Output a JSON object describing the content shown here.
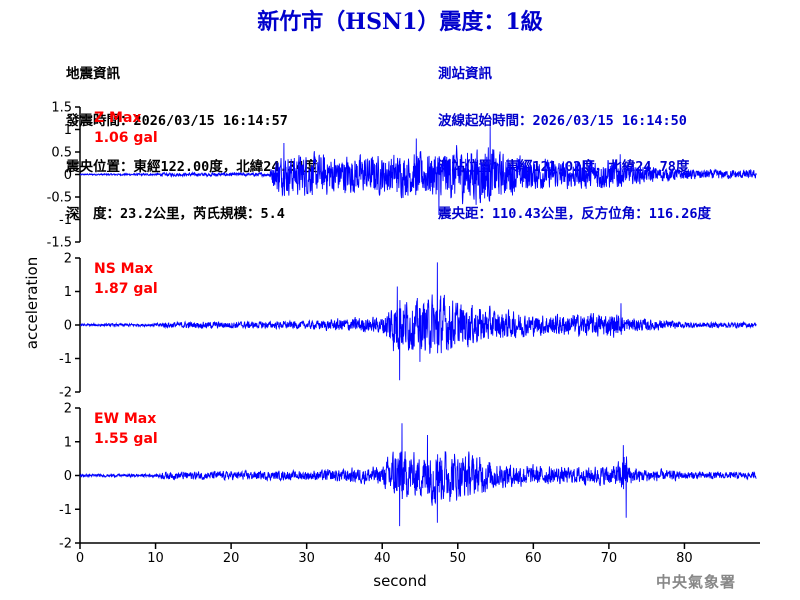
{
  "title": "新竹市（HSN1）震度：1級",
  "event_info": {
    "heading": "地震資訊",
    "time": "發震時間：2026/03/15 16:14:57",
    "epicenter": "震央位置：東經122.00度，北緯24.34度",
    "depth_magnitude": "深　度：23.2公里，芮氏規模：5.4"
  },
  "station_info": {
    "heading": "測站資訊",
    "wave_start": "波線起始時間：2026/03/15 16:14:50",
    "location": "測站位置：東經121.02度，北緯24.78度",
    "distance": "震央距：110.43公里，反方位角：116.26度"
  },
  "watermark": "中央氣象署",
  "colors": {
    "trace": "#0000ff",
    "label": "#ff0000",
    "title": "#0000cc",
    "axis": "#000000"
  },
  "chart_data": {
    "type": "line",
    "xlabel": "second",
    "ylabel": "acceleration",
    "xlim": [
      0,
      90
    ],
    "xticks": [
      "0",
      "10",
      "20",
      "30",
      "40",
      "50",
      "60",
      "70",
      "80"
    ],
    "grid": false,
    "panels": [
      {
        "component": "Z",
        "max_label": "Z Max",
        "max_value": "1.06 gal",
        "ylim": [
          -1.5,
          1.5
        ],
        "yticks": [
          "1.5",
          "1",
          "0.5",
          "0",
          "-0.5",
          "-1",
          "-1.5"
        ],
        "envelope": [
          [
            0,
            0.02
          ],
          [
            10,
            0.03
          ],
          [
            11,
            0.05
          ],
          [
            25,
            0.05
          ],
          [
            26,
            0.55
          ],
          [
            30,
            0.6
          ],
          [
            35,
            0.55
          ],
          [
            40,
            0.55
          ],
          [
            46,
            0.65
          ],
          [
            48,
            0.7
          ],
          [
            54,
            0.85
          ],
          [
            56,
            0.6
          ],
          [
            60,
            0.45
          ],
          [
            65,
            0.4
          ],
          [
            71,
            0.45
          ],
          [
            72,
            0.3
          ],
          [
            80,
            0.15
          ],
          [
            89.5,
            0.12
          ]
        ],
        "peaks": [
          [
            54.3,
            1.06
          ],
          [
            47.5,
            -0.9
          ],
          [
            44.5,
            0.8
          ],
          [
            27,
            0.7
          ],
          [
            71.5,
            0.45
          ]
        ]
      },
      {
        "component": "NS",
        "max_label": "NS Max",
        "max_value": "1.87 gal",
        "ylim": [
          -2,
          2
        ],
        "yticks": [
          "2",
          "1",
          "0",
          "-1",
          "-2"
        ],
        "envelope": [
          [
            0,
            0.05
          ],
          [
            10,
            0.06
          ],
          [
            11,
            0.12
          ],
          [
            30,
            0.15
          ],
          [
            37,
            0.3
          ],
          [
            40,
            0.3
          ],
          [
            41.5,
            1.1
          ],
          [
            45,
            0.9
          ],
          [
            47,
            1.2
          ],
          [
            50,
            0.9
          ],
          [
            55,
            0.6
          ],
          [
            60,
            0.4
          ],
          [
            71,
            0.45
          ],
          [
            72,
            0.3
          ],
          [
            80,
            0.12
          ],
          [
            89.5,
            0.1
          ]
        ],
        "peaks": [
          [
            47.3,
            1.87
          ],
          [
            42.3,
            -1.65
          ],
          [
            42,
            1.15
          ],
          [
            45,
            -1.1
          ],
          [
            71.6,
            0.65
          ]
        ]
      },
      {
        "component": "EW",
        "max_label": "EW Max",
        "max_value": "1.55 gal",
        "ylim": [
          -2,
          2
        ],
        "yticks": [
          "2",
          "1",
          "0",
          "-1",
          "-2"
        ],
        "envelope": [
          [
            0,
            0.05
          ],
          [
            10,
            0.06
          ],
          [
            11,
            0.15
          ],
          [
            30,
            0.18
          ],
          [
            37,
            0.3
          ],
          [
            40,
            0.35
          ],
          [
            41.5,
            1.0
          ],
          [
            45,
            0.8
          ],
          [
            47,
            1.1
          ],
          [
            52,
            0.8
          ],
          [
            56,
            0.45
          ],
          [
            65,
            0.3
          ],
          [
            71,
            0.4
          ],
          [
            72,
            0.8
          ],
          [
            73,
            0.3
          ],
          [
            80,
            0.15
          ],
          [
            89.5,
            0.12
          ]
        ],
        "peaks": [
          [
            42.6,
            1.55
          ],
          [
            42.3,
            -1.5
          ],
          [
            47.3,
            -1.4
          ],
          [
            46,
            1.2
          ],
          [
            72.3,
            -1.25
          ],
          [
            71.9,
            0.9
          ]
        ]
      }
    ]
  }
}
